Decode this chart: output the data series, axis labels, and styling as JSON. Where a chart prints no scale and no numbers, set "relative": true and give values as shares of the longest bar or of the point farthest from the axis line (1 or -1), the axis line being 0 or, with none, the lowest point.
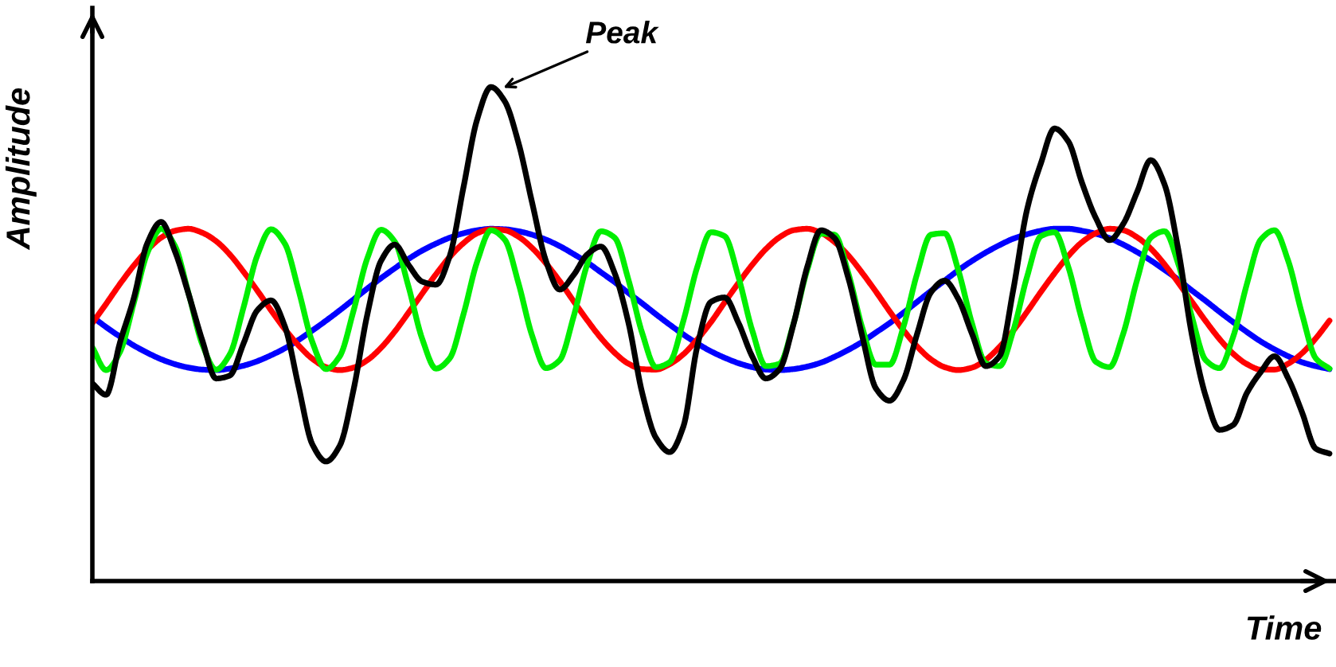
{
  "chart_data": {
    "type": "line",
    "relative": true,
    "xlabel": "Time",
    "ylabel": "Amplitude",
    "categories": [
      null,
      null,
      null,
      null,
      null,
      null,
      null,
      null,
      null,
      null,
      null,
      null,
      null,
      null,
      null,
      null,
      null,
      null,
      null,
      null,
      null,
      null,
      null,
      null,
      null,
      null,
      null,
      null,
      null,
      null,
      null,
      null,
      null,
      null,
      null,
      null,
      null,
      null,
      null,
      null,
      null,
      null,
      null,
      null,
      null,
      null,
      null,
      null,
      null,
      null,
      null,
      null,
      null,
      null,
      null,
      null,
      null,
      null,
      null,
      null,
      null,
      null,
      null,
      null,
      null,
      null,
      null,
      null,
      null,
      null,
      null,
      null,
      null,
      null,
      null,
      null,
      null,
      null,
      null,
      null,
      null,
      null,
      null,
      null,
      null,
      null,
      null,
      null,
      null,
      null,
      null
    ],
    "series": [
      {
        "color": "#0000ff",
        "values": [
          0.535,
          0.514,
          0.495,
          0.477,
          0.462,
          0.449,
          0.439,
          0.432,
          0.428,
          0.427,
          0.43,
          0.436,
          0.445,
          0.457,
          0.471,
          0.488,
          0.507,
          0.527,
          0.548,
          0.57,
          0.592,
          0.613,
          0.633,
          0.652,
          0.669,
          0.683,
          0.695,
          0.704,
          0.71,
          0.713,
          0.712,
          0.708,
          0.701,
          0.691,
          0.678,
          0.662,
          0.645,
          0.625,
          0.605,
          0.583,
          0.562,
          0.54,
          0.519,
          0.499,
          0.481,
          0.465,
          0.452,
          0.441,
          0.433,
          0.428,
          0.427,
          0.429,
          0.434,
          0.442,
          0.454,
          0.468,
          0.484,
          0.503,
          0.522,
          0.543,
          0.565,
          0.587,
          0.608,
          0.629,
          0.648,
          0.665,
          0.68,
          0.693,
          0.702,
          0.709,
          0.713,
          0.713,
          0.709,
          0.703,
          0.694,
          0.681,
          0.666,
          0.649,
          0.63,
          0.61,
          0.588,
          0.567,
          0.545,
          0.524,
          0.504,
          0.485,
          0.469,
          0.455,
          0.443,
          0.435,
          0.429
        ]
      },
      {
        "color": "#ff0000",
        "values": [
          0.522,
          0.561,
          0.601,
          0.638,
          0.67,
          0.695,
          0.709,
          0.713,
          0.705,
          0.688,
          0.661,
          0.626,
          0.588,
          0.548,
          0.51,
          0.477,
          0.45,
          0.433,
          0.427,
          0.432,
          0.447,
          0.472,
          0.505,
          0.543,
          0.582,
          0.621,
          0.656,
          0.684,
          0.704,
          0.712,
          0.71,
          0.697,
          0.674,
          0.643,
          0.607,
          0.567,
          0.528,
          0.492,
          0.462,
          0.44,
          0.429,
          0.428,
          0.439,
          0.459,
          0.489,
          0.524,
          0.564,
          0.603,
          0.64,
          0.672,
          0.696,
          0.71,
          0.713,
          0.705,
          0.686,
          0.659,
          0.624,
          0.586,
          0.546,
          0.508,
          0.475,
          0.449,
          0.433,
          0.427,
          0.432,
          0.448,
          0.474,
          0.507,
          0.545,
          0.585,
          0.623,
          0.658,
          0.686,
          0.704,
          0.713,
          0.71,
          0.696,
          0.673,
          0.641,
          0.604,
          0.565,
          0.526,
          0.49,
          0.46,
          0.439,
          0.428,
          0.428,
          0.44,
          0.461,
          0.491,
          0.527
        ]
      },
      {
        "color": "#00ee00",
        "values": [
          0.473,
          0.427,
          0.463,
          0.561,
          0.664,
          0.713,
          0.679,
          0.582,
          0.479,
          0.428,
          0.459,
          0.554,
          0.659,
          0.712,
          0.683,
          0.589,
          0.484,
          0.429,
          0.455,
          0.547,
          0.653,
          0.711,
          0.687,
          0.596,
          0.49,
          0.43,
          0.451,
          0.54,
          0.647,
          0.71,
          0.691,
          0.603,
          0.496,
          0.431,
          0.447,
          0.534,
          0.641,
          0.708,
          0.695,
          0.61,
          0.502,
          0.433,
          0.443,
          0.527,
          0.635,
          0.706,
          0.698,
          0.616,
          0.508,
          0.435,
          0.44,
          0.52,
          0.629,
          0.703,
          0.701,
          0.623,
          0.514,
          0.438,
          0.438,
          0.514,
          0.622,
          0.701,
          0.704,
          0.629,
          0.521,
          0.441,
          0.435,
          0.507,
          0.616,
          0.698,
          0.706,
          0.636,
          0.528,
          0.444,
          0.433,
          0.501,
          0.609,
          0.695,
          0.708,
          0.642,
          0.534,
          0.447,
          0.431,
          0.495,
          0.602,
          0.691,
          0.71,
          0.648,
          0.541,
          0.451,
          0.43
        ]
      },
      {
        "color": "#000000",
        "values": [
          0.4,
          0.377,
          0.482,
          0.571,
          0.684,
          0.727,
          0.668,
          0.581,
          0.487,
          0.41,
          0.416,
          0.481,
          0.548,
          0.568,
          0.516,
          0.394,
          0.277,
          0.242,
          0.274,
          0.387,
          0.539,
          0.648,
          0.681,
          0.64,
          0.606,
          0.6,
          0.658,
          0.797,
          0.935,
          1.0,
          0.971,
          0.887,
          0.765,
          0.648,
          0.59,
          0.619,
          0.661,
          0.677,
          0.623,
          0.523,
          0.381,
          0.29,
          0.261,
          0.313,
          0.474,
          0.565,
          0.574,
          0.523,
          0.455,
          0.41,
          0.429,
          0.519,
          0.635,
          0.71,
          0.694,
          0.613,
          0.497,
          0.39,
          0.365,
          0.406,
          0.5,
          0.584,
          0.608,
          0.571,
          0.5,
          0.435,
          0.455,
          0.59,
          0.752,
          0.845,
          0.916,
          0.89,
          0.806,
          0.735,
          0.69,
          0.723,
          0.787,
          0.852,
          0.803,
          0.671,
          0.497,
          0.374,
          0.306,
          0.316,
          0.381,
          0.423,
          0.455,
          0.41,
          0.342,
          0.268,
          0.258
        ]
      }
    ],
    "annotations": [
      "Peak"
    ],
    "marker": "none",
    "line_style": "solid"
  }
}
